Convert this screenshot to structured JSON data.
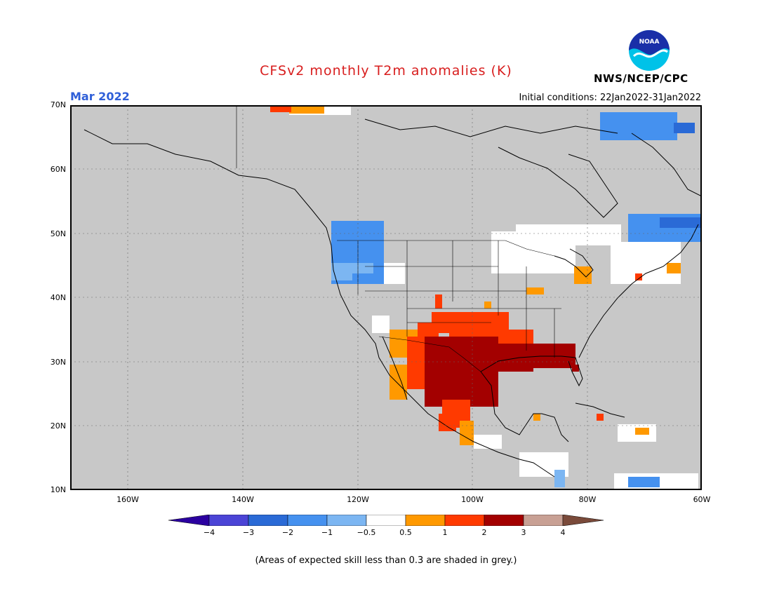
{
  "header": {
    "title": "CFSv2 monthly T2m anomalies (K)",
    "valid_label": "Mar 2022",
    "initial_conditions": "Initial conditions: 22Jan2022-31Jan2022",
    "agency": "NWS/NCEP/CPC",
    "logo_text": "NOAA"
  },
  "map": {
    "lon_range": [
      -170,
      -60
    ],
    "lat_range": [
      10,
      70
    ],
    "lat_labels": [
      "70N",
      "60N",
      "50N",
      "40N",
      "30N",
      "20N",
      "10N"
    ],
    "lon_labels": [
      "160W",
      "140W",
      "120W",
      "100W",
      "80W",
      "60W"
    ],
    "background": "#c8c8c8"
  },
  "colorbar": {
    "labels": [
      "−4",
      "−3",
      "−2",
      "−1",
      "−0.5",
      "0.5",
      "1",
      "2",
      "3",
      "4"
    ],
    "colors": [
      "#2b00a0",
      "#4b44d6",
      "#2a6ad6",
      "#4591ef",
      "#7cb6f2",
      "#ffffff",
      "#ff9900",
      "#ff3a00",
      "#a30000",
      "#c8a094",
      "#7a4a3a"
    ]
  },
  "footnote": "(Areas of expected skill less than 0.3 are shaded in grey.)"
}
